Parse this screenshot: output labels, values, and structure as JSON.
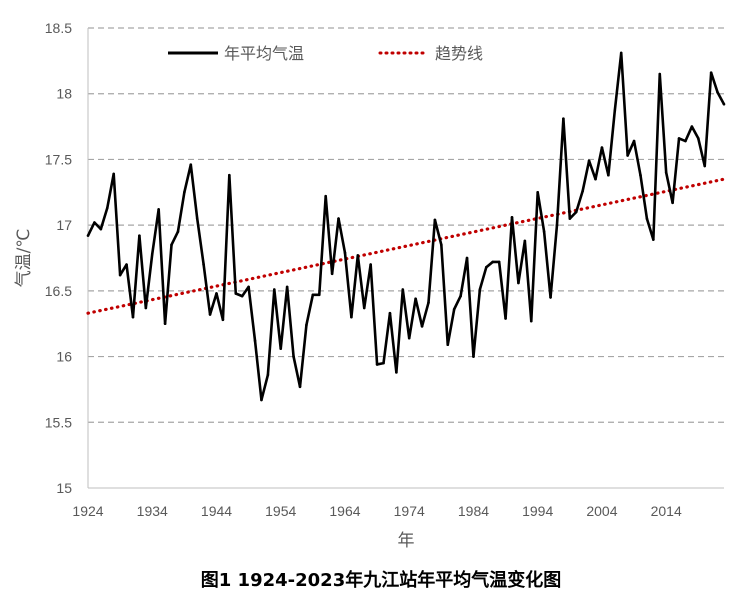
{
  "chart_data": {
    "type": "line",
    "title": "图1 1924-2023年九江站年平均气温变化图",
    "xlabel": "年",
    "ylabel": "气温/℃",
    "xlim": [
      1924,
      2023
    ],
    "ylim": [
      15,
      18.5
    ],
    "x_ticks": [
      "1924",
      "1934",
      "1944",
      "1954",
      "1964",
      "1974",
      "1984",
      "1994",
      "2004",
      "2014"
    ],
    "y_ticks": [
      "15",
      "15.5",
      "16",
      "16.5",
      "17",
      "17.5",
      "18",
      "18.5"
    ],
    "grid": "horizontal dashed",
    "legend_position": "top-left",
    "series": [
      {
        "name": "年平均气温",
        "color": "#000000",
        "style": "solid",
        "x": [
          1924,
          1925,
          1926,
          1927,
          1928,
          1929,
          1930,
          1931,
          1932,
          1933,
          1934,
          1935,
          1936,
          1937,
          1938,
          1939,
          1940,
          1941,
          1942,
          1943,
          1944,
          1945,
          1946,
          1947,
          1948,
          1949,
          1950,
          1951,
          1952,
          1953,
          1954,
          1955,
          1956,
          1957,
          1958,
          1959,
          1960,
          1961,
          1962,
          1963,
          1964,
          1965,
          1966,
          1967,
          1968,
          1969,
          1970,
          1971,
          1972,
          1973,
          1974,
          1975,
          1976,
          1977,
          1978,
          1979,
          1980,
          1981,
          1982,
          1983,
          1984,
          1985,
          1986,
          1987,
          1988,
          1989,
          1990,
          1991,
          1992,
          1993,
          1994,
          1995,
          1996,
          1997,
          1998,
          1999,
          2000,
          2001,
          2002,
          2003,
          2004,
          2005,
          2006,
          2007,
          2008,
          2009,
          2010,
          2011,
          2012,
          2013,
          2014,
          2015,
          2016,
          2017,
          2018,
          2019,
          2020,
          2021,
          2022,
          2023
        ],
        "y": [
          16.92,
          17.02,
          16.97,
          17.13,
          17.39,
          16.62,
          16.7,
          16.3,
          16.92,
          16.37,
          16.78,
          17.12,
          16.25,
          16.85,
          16.95,
          17.25,
          17.46,
          17.05,
          16.7,
          16.32,
          16.48,
          16.28,
          17.38,
          16.48,
          16.46,
          16.53,
          16.12,
          15.67,
          15.86,
          16.51,
          16.06,
          16.53,
          16.0,
          15.77,
          16.24,
          16.47,
          16.47,
          17.22,
          16.63,
          17.05,
          16.79,
          16.3,
          16.77,
          16.37,
          16.7,
          15.94,
          15.95,
          16.33,
          15.88,
          16.51,
          16.14,
          16.44,
          16.23,
          16.41,
          17.04,
          16.85,
          16.09,
          16.36,
          16.46,
          16.75,
          16.0,
          16.51,
          16.68,
          16.72,
          16.72,
          16.29,
          17.06,
          16.56,
          16.88,
          16.27,
          17.25,
          16.95,
          16.45,
          17.0,
          17.81,
          17.05,
          17.1,
          17.26,
          17.49,
          17.35,
          17.59,
          17.38,
          17.87,
          18.31,
          17.53,
          17.64,
          17.38,
          17.05,
          16.89,
          18.15,
          17.4,
          17.17,
          17.66,
          17.64,
          17.75,
          17.66,
          17.45,
          18.16,
          18.01,
          17.92
        ]
      },
      {
        "name": "趋势线",
        "color": "#c00000",
        "style": "dotted",
        "x": [
          1924,
          2023
        ],
        "y": [
          16.33,
          17.35
        ]
      }
    ]
  }
}
